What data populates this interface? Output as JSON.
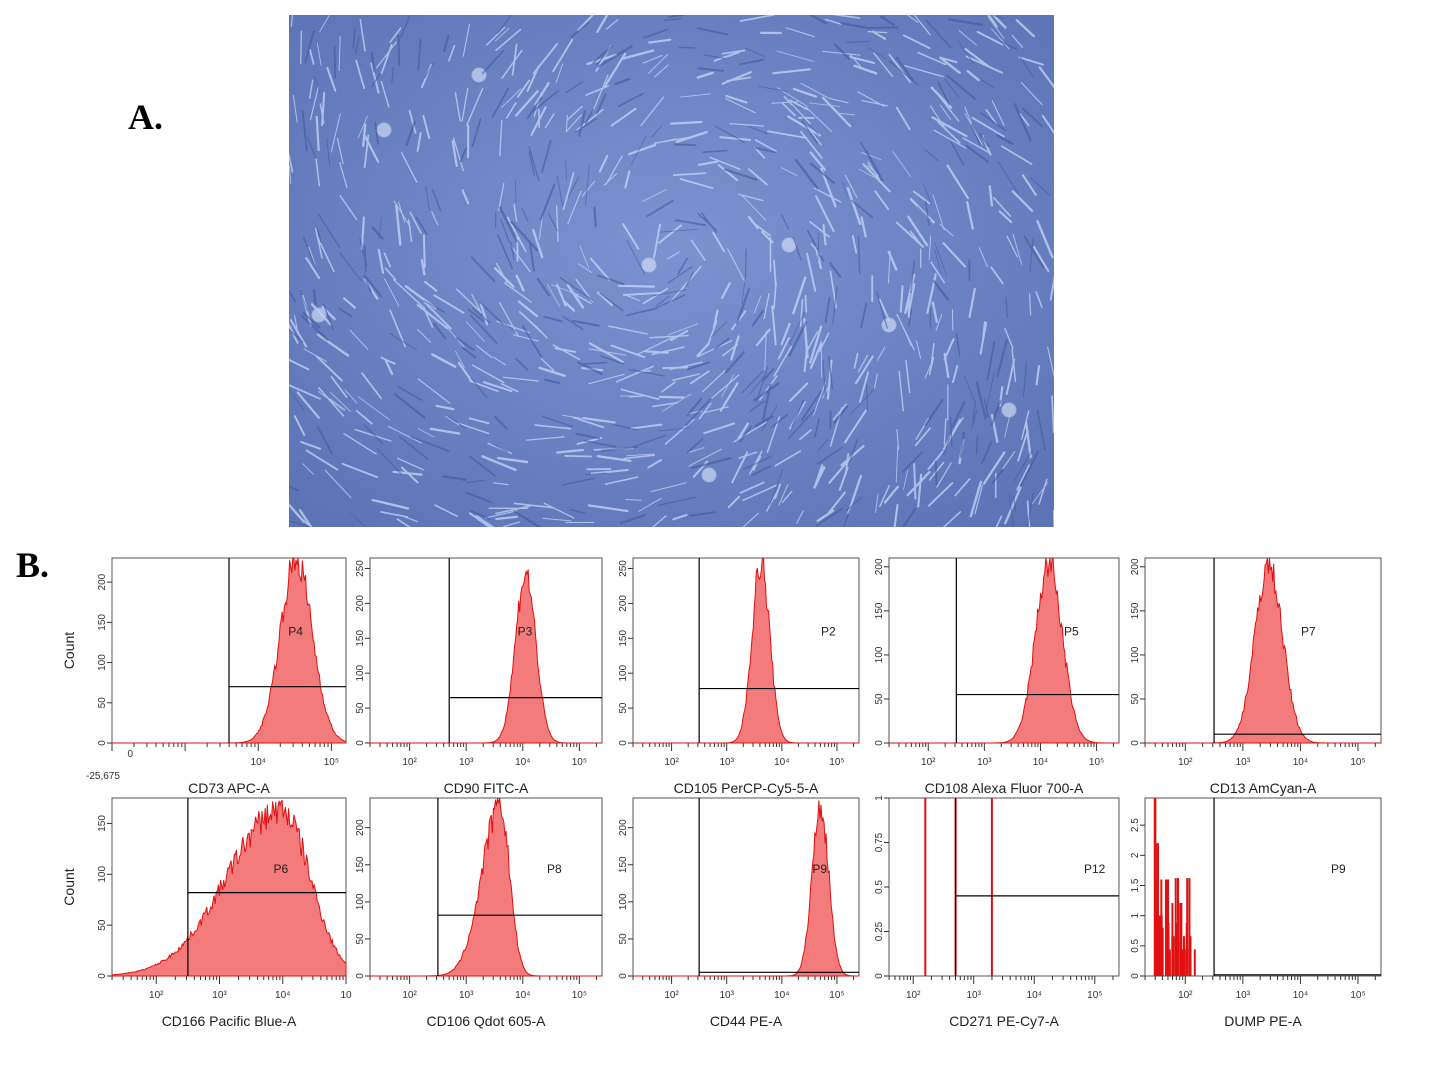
{
  "labels": {
    "a": "A.",
    "b": "B."
  },
  "colors": {
    "histogram_fill": "#f47b7b",
    "histogram_stroke": "#e01010",
    "micrograph_bg": "#6f86c4",
    "cell": "#cbd8f5"
  },
  "chart_data": [
    {
      "type": "histogram",
      "title": "CD73 APC-A",
      "ylabel": "Count",
      "yticks": [
        "0",
        "50",
        "100",
        "150",
        "200"
      ],
      "ylim": [
        0,
        230
      ],
      "xticks": [
        "10⁴",
        "10⁵"
      ],
      "extra_xlabel": "-25,675",
      "zero_label": "0",
      "gate": "P4",
      "gate_line_count": 70,
      "peak_log": 4.52,
      "peak_count": 230,
      "sigma": 0.22,
      "xlim": [
        2.0,
        5.2
      ],
      "gate_start_log": 3.6
    },
    {
      "type": "histogram",
      "title": "CD90 FITC-A",
      "ylabel": "",
      "yticks": [
        "0",
        "50",
        "100",
        "150",
        "200",
        "250"
      ],
      "ylim": [
        0,
        265
      ],
      "xticks": [
        "10²",
        "10³",
        "10⁴",
        "10⁵"
      ],
      "gate": "P3",
      "gate_line_count": 65,
      "peak_log": 4.05,
      "peak_count": 245,
      "sigma": 0.18,
      "xlim": [
        1.3,
        5.4
      ],
      "gate_start_log": 2.7
    },
    {
      "type": "histogram",
      "title": "CD105 PerCP-Cy5-5-A",
      "ylabel": "",
      "yticks": [
        "0",
        "50",
        "100",
        "150",
        "200",
        "250"
      ],
      "ylim": [
        0,
        265
      ],
      "xticks": [
        "10²",
        "10³",
        "10⁴",
        "10⁵"
      ],
      "gate": "P2",
      "gate_line_count": 78,
      "peak_log": 3.62,
      "peak_count": 262,
      "sigma": 0.16,
      "xlim": [
        1.3,
        5.4
      ],
      "gate_start_log": 2.5
    },
    {
      "type": "histogram",
      "title": "CD108 Alexa Fluor 700-A",
      "ylabel": "",
      "yticks": [
        "0",
        "50",
        "100",
        "150",
        "200"
      ],
      "ylim": [
        0,
        210
      ],
      "xticks": [
        "10²",
        "10³",
        "10⁴",
        "10⁵"
      ],
      "gate": "P5",
      "gate_line_count": 55,
      "peak_log": 4.15,
      "peak_count": 205,
      "sigma": 0.24,
      "xlim": [
        1.3,
        5.4
      ],
      "gate_start_log": 2.5
    },
    {
      "type": "histogram",
      "title": "CD13 AmCyan-A",
      "ylabel": "",
      "yticks": [
        "0",
        "50",
        "100",
        "150",
        "200"
      ],
      "ylim": [
        0,
        210
      ],
      "xticks": [
        "10²",
        "10³",
        "10⁴",
        "10⁵"
      ],
      "gate": "P7",
      "gate_line_count": 10,
      "peak_log": 3.45,
      "peak_count": 205,
      "sigma": 0.24,
      "xlim": [
        1.3,
        5.4
      ],
      "gate_start_log": 2.5
    },
    {
      "type": "histogram",
      "title": "CD166 Pacific Blue-A",
      "ylabel": "Count",
      "yticks": [
        "0",
        "50",
        "100",
        "150"
      ],
      "ylim": [
        0,
        175
      ],
      "xticks": [
        "10²",
        "10³",
        "10⁴",
        "10"
      ],
      "gate": "P6",
      "gate_line_count": 82,
      "peak_log": 3.98,
      "peak_count": 165,
      "sigma": 0.45,
      "xlim": [
        1.3,
        5.0
      ],
      "gate_start_log": 2.5,
      "skew": true
    },
    {
      "type": "histogram",
      "title": "CD106 Qdot 605-A",
      "ylabel": "",
      "yticks": [
        "0",
        "50",
        "100",
        "150",
        "200"
      ],
      "ylim": [
        0,
        240
      ],
      "xticks": [
        "10²",
        "10³",
        "10⁴",
        "10⁵"
      ],
      "gate": "P8",
      "gate_line_count": 82,
      "peak_log": 3.6,
      "peak_count": 232,
      "sigma": 0.17,
      "xlim": [
        1.3,
        5.4
      ],
      "gate_start_log": 2.5,
      "skew": true
    },
    {
      "type": "histogram",
      "title": "CD44 PE-A",
      "ylabel": "",
      "yticks": [
        "0",
        "50",
        "100",
        "150",
        "200"
      ],
      "ylim": [
        0,
        240
      ],
      "xticks": [
        "10²",
        "10³",
        "10⁴",
        "10⁵"
      ],
      "gate": "P9",
      "gate_line_count": 5,
      "peak_log": 4.7,
      "peak_count": 232,
      "sigma": 0.15,
      "xlim": [
        1.3,
        5.4
      ],
      "gate_start_log": 2.5
    },
    {
      "type": "histogram",
      "title": "CD271 PE-Cy7-A",
      "ylabel": "",
      "yticks": [
        "0",
        "0.25",
        "0.5",
        "0.75",
        "1"
      ],
      "ylim": [
        0,
        1.0
      ],
      "xticks": [
        "10²",
        "10³",
        "10⁴",
        "10⁵"
      ],
      "gate": "P12",
      "gate_line_count": 0.45,
      "spikes": [
        {
          "log": 2.2,
          "count": 1.0
        },
        {
          "log": 2.7,
          "count": 1.0
        },
        {
          "log": 3.3,
          "count": 1.0
        }
      ],
      "xlim": [
        1.6,
        5.4
      ],
      "gate_start_log": 2.7
    },
    {
      "type": "histogram",
      "title": "DUMP PE-A",
      "ylabel": "",
      "yticks": [
        "0",
        "0.5",
        "1",
        "1.5",
        "2",
        "2.5"
      ],
      "ylim": [
        0,
        2.95
      ],
      "xticks": [
        "10²",
        "10³",
        "10⁴",
        "10⁵"
      ],
      "gate": "P9",
      "gate_line_count": 0.02,
      "spikes_dense": true,
      "xlim": [
        1.3,
        5.4
      ],
      "gate_start_log": 2.5
    }
  ]
}
